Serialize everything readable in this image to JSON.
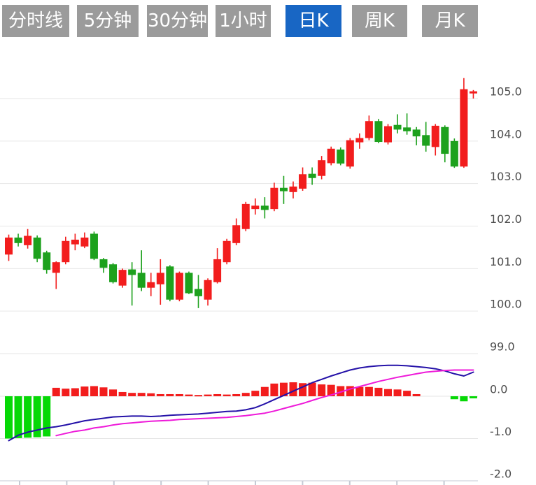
{
  "toolbar": {
    "buttons": [
      {
        "label": "分时线",
        "active": false
      },
      {
        "label": "5分钟",
        "active": false
      },
      {
        "label": "30分钟",
        "active": false
      },
      {
        "label": "1小时",
        "active": false
      },
      {
        "label": "日K",
        "active": true
      },
      {
        "label": "周K",
        "active": false
      },
      {
        "label": "月K",
        "active": false
      }
    ],
    "colors": {
      "active_bg": "#1866c4",
      "inactive_bg": "#9b9b9b",
      "text": "#ffffff"
    }
  },
  "chart_data": {
    "type": "candlestick",
    "title": "",
    "legend": "none",
    "grid": "horizontal",
    "panels": [
      "price-kline",
      "macd-indicator"
    ],
    "price_axis": {
      "side": "right",
      "tick_values": [
        105.0,
        104.0,
        103.0,
        102.0,
        101.0,
        100.0,
        99.0
      ],
      "tick_labels": [
        "105.0",
        "104.0",
        "103.0",
        "102.0",
        "101.0",
        "100.0",
        "99.0"
      ],
      "range": [
        98.8,
        106.4
      ]
    },
    "indicator_axis": {
      "side": "right",
      "tick_values": [
        0.0,
        -1.0,
        -2.0
      ],
      "tick_labels": [
        "0.0",
        "-1.0",
        "-2.0"
      ],
      "range": [
        0.8,
        -2.0
      ]
    },
    "candle_format": "ohlc",
    "candles": [
      [
        101.33,
        101.8,
        101.18,
        101.73
      ],
      [
        101.73,
        101.82,
        101.52,
        101.6
      ],
      [
        101.55,
        101.93,
        101.47,
        101.77
      ],
      [
        101.73,
        101.78,
        101.15,
        101.23
      ],
      [
        101.38,
        101.42,
        100.88,
        100.97
      ],
      [
        100.9,
        101.17,
        100.52,
        101.15
      ],
      [
        101.15,
        101.75,
        101.1,
        101.65
      ],
      [
        101.57,
        101.82,
        101.43,
        101.68
      ],
      [
        101.52,
        101.85,
        101.48,
        101.73
      ],
      [
        101.82,
        101.87,
        101.2,
        101.23
      ],
      [
        101.22,
        101.25,
        100.9,
        101.02
      ],
      [
        101.1,
        101.13,
        100.65,
        100.68
      ],
      [
        100.6,
        101.0,
        100.55,
        100.97
      ],
      [
        100.98,
        101.15,
        100.13,
        100.85
      ],
      [
        100.9,
        101.43,
        100.47,
        100.55
      ],
      [
        100.55,
        100.9,
        100.35,
        100.68
      ],
      [
        100.63,
        101.22,
        100.15,
        100.9
      ],
      [
        101.05,
        101.08,
        100.23,
        100.27
      ],
      [
        100.27,
        100.93,
        100.23,
        100.9
      ],
      [
        100.9,
        100.93,
        100.4,
        100.42
      ],
      [
        100.52,
        100.85,
        100.07,
        100.35
      ],
      [
        100.27,
        100.77,
        100.13,
        100.73
      ],
      [
        100.68,
        101.48,
        100.65,
        101.22
      ],
      [
        101.15,
        101.7,
        101.1,
        101.65
      ],
      [
        101.6,
        102.18,
        101.55,
        102.02
      ],
      [
        101.93,
        102.57,
        101.88,
        102.52
      ],
      [
        102.4,
        102.65,
        102.27,
        102.48
      ],
      [
        102.48,
        102.68,
        102.18,
        102.38
      ],
      [
        102.4,
        103.02,
        102.35,
        102.9
      ],
      [
        102.9,
        103.18,
        102.52,
        102.82
      ],
      [
        102.8,
        103.05,
        102.65,
        102.93
      ],
      [
        102.88,
        103.38,
        102.83,
        103.22
      ],
      [
        103.23,
        103.38,
        102.97,
        103.13
      ],
      [
        103.18,
        103.65,
        103.1,
        103.55
      ],
      [
        103.48,
        103.87,
        103.43,
        103.82
      ],
      [
        103.8,
        103.85,
        103.43,
        103.47
      ],
      [
        103.4,
        104.07,
        103.35,
        104.02
      ],
      [
        103.97,
        104.18,
        103.82,
        104.07
      ],
      [
        104.07,
        104.6,
        104.02,
        104.47
      ],
      [
        104.47,
        104.52,
        103.95,
        103.98
      ],
      [
        103.97,
        104.4,
        103.92,
        104.35
      ],
      [
        104.38,
        104.63,
        104.18,
        104.27
      ],
      [
        104.32,
        104.65,
        104.15,
        104.23
      ],
      [
        104.27,
        104.33,
        103.9,
        104.11
      ],
      [
        104.14,
        104.45,
        103.75,
        103.89
      ],
      [
        103.86,
        104.4,
        103.66,
        104.36
      ],
      [
        104.33,
        104.37,
        103.5,
        103.7
      ],
      [
        104.0,
        104.06,
        103.37,
        103.4
      ],
      [
        103.4,
        105.48,
        103.37,
        105.22
      ],
      [
        105.12,
        105.2,
        105.0,
        105.17
      ]
    ],
    "macd": {
      "histogram": [
        -1.0,
        -0.99,
        -0.98,
        -0.97,
        -0.95,
        0.2,
        0.18,
        0.19,
        0.23,
        0.24,
        0.21,
        0.16,
        0.1,
        0.08,
        0.08,
        0.07,
        0.05,
        0.05,
        0.05,
        0.04,
        0.03,
        0.04,
        0.05,
        0.04,
        0.05,
        0.08,
        0.13,
        0.22,
        0.3,
        0.32,
        0.33,
        0.31,
        0.32,
        0.28,
        0.27,
        0.24,
        0.24,
        0.22,
        0.22,
        0.2,
        0.17,
        0.16,
        0.13,
        0.05,
        0,
        0,
        0,
        -0.07,
        -0.12,
        -0.05
      ],
      "dif": [
        -1.05,
        -0.92,
        -0.85,
        -0.8,
        -0.75,
        -0.72,
        -0.68,
        -0.63,
        -0.58,
        -0.55,
        -0.52,
        -0.49,
        -0.48,
        -0.47,
        -0.47,
        -0.48,
        -0.47,
        -0.45,
        -0.44,
        -0.43,
        -0.42,
        -0.4,
        -0.38,
        -0.36,
        -0.35,
        -0.32,
        -0.27,
        -0.18,
        -0.08,
        0.02,
        0.12,
        0.22,
        0.32,
        0.4,
        0.48,
        0.55,
        0.62,
        0.67,
        0.7,
        0.72,
        0.73,
        0.73,
        0.72,
        0.7,
        0.68,
        0.65,
        0.6,
        0.53,
        0.48,
        0.57
      ],
      "dea": [
        null,
        null,
        null,
        null,
        null,
        -0.93,
        -0.88,
        -0.83,
        -0.8,
        -0.75,
        -0.72,
        -0.68,
        -0.65,
        -0.63,
        -0.61,
        -0.59,
        -0.58,
        -0.57,
        -0.55,
        -0.54,
        -0.53,
        -0.52,
        -0.51,
        -0.5,
        -0.48,
        -0.46,
        -0.43,
        -0.4,
        -0.35,
        -0.29,
        -0.23,
        -0.17,
        -0.1,
        -0.03,
        0.03,
        0.1,
        0.17,
        0.23,
        0.29,
        0.35,
        0.4,
        0.45,
        0.49,
        0.53,
        0.57,
        0.59,
        0.61,
        0.62,
        0.62,
        0.62
      ]
    },
    "colors": {
      "up_candle": "#f21d1d",
      "down_candle": "#1da11d",
      "hist_positive": "#f21d1d",
      "hist_negative": "#06d806",
      "dif_line": "#2411a8",
      "dea_line": "#ee1ad9",
      "grid": "#e6e6e6",
      "axis_border": "#c4cad4",
      "axis_text": "#4d4d4d"
    }
  }
}
